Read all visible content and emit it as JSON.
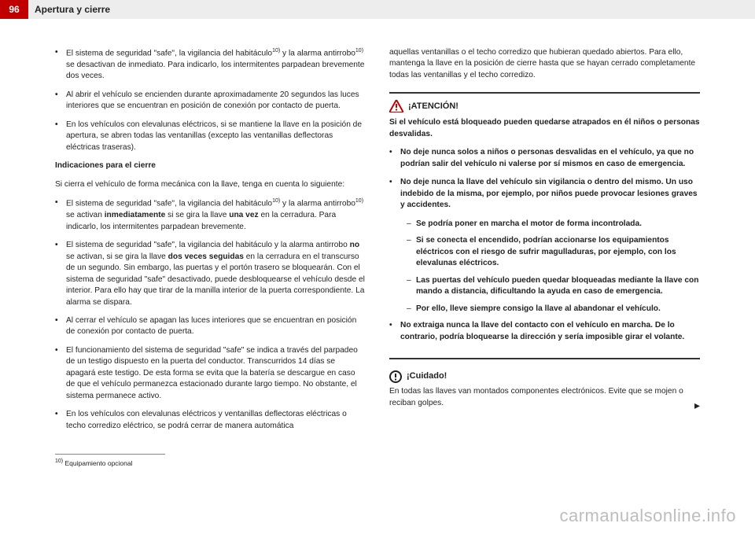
{
  "header": {
    "page_num": "96",
    "section": "Apertura y cierre"
  },
  "left": {
    "bullets_top": [
      "El sistema de seguridad \"safe\", la vigilancia del habitáculo<sup>10)</sup> y la alarma antirrobo<sup>10)</sup> se desactivan de inmediato. Para indicarlo, los intermitentes parpadean brevemente dos veces.",
      "Al abrir el vehículo se encienden durante aproximadamente 20 segundos las luces interiores que se encuentran en posición de conexión por contacto de puerta.",
      "En los vehículos con elevalunas eléctricos, si se mantiene la llave en la posición de apertura, se abren todas las ventanillas (excepto las ventanillas deflectoras eléctricas traseras)."
    ],
    "subhead": "Indicaciones para el cierre",
    "intro": "Si cierra el vehículo de forma mecánica con la llave, tenga en cuenta lo siguiente:",
    "bullets_bottom": [
      "El sistema de seguridad \"safe\", la vigilancia del habitáculo<sup>10)</sup> y la alarma antirrobo<sup>10)</sup> se activan <b>inmediatamente</b> si se gira la llave <b>una vez</b> en la cerradura. Para indicarlo, los intermitentes parpadean brevemente.",
      "El sistema de seguridad \"safe\", la vigilancia del habitáculo y la alarma antirrobo <b>no</b> se activan, si se gira la llave <b>dos veces seguidas</b> en la cerradura en el transcurso de un segundo. Sin embargo, las puertas y el portón trasero se bloquearán. Con el sistema de seguridad \"safe\" desactivado, puede desbloquearse el vehículo desde el interior. Para ello hay que tirar de la manilla interior de la puerta correspondiente. La alarma se dispara.",
      "Al cerrar el vehículo se apagan las luces interiores que se encuentran en posición de conexión por contacto de puerta.",
      "El funcionamiento del sistema de seguridad \"safe\" se indica a través del parpadeo de un testigo dispuesto en la puerta del conductor. Transcurridos 14 días se apagará este testigo. De esta forma se evita que la batería se descargue en caso de que el vehículo permanezca estacionado durante largo tiempo. No obstante, el sistema permanece activo.",
      "En los vehículos con elevalunas eléctricos y ventanillas deflectoras eléctricas o techo corredizo eléctrico, se podrá cerrar de manera automática"
    ],
    "footnote": "Equipamiento opcional",
    "footnote_mark": "10)"
  },
  "right": {
    "top_para": "aquellas ventanillas o el techo corredizo que hubieran quedado abiertos. Para ello, mantenga la llave en la posición de cierre hasta que se hayan cerrado completamente todas las ventanillas y el techo corredizo.",
    "warn_title": "¡ATENCIÓN!",
    "warn_intro": "Si el vehículo está bloqueado pueden quedarse atrapados en él niños o personas desvalidas.",
    "warn_bullets": [
      "No deje nunca solos a niños o personas desvalidas en el vehículo, ya que no podrían salir del vehículo ni valerse por sí mismos en caso de emergencia.",
      "No deje nunca la llave del vehículo sin vigilancia o dentro del mismo. Un uso indebido de la misma, por ejemplo, por niños puede provocar lesiones graves y accidentes."
    ],
    "warn_sub": [
      "Se podría poner en marcha el motor de forma incontrolada.",
      "Si se conecta el encendido, podrían accionarse los equipamientos eléctricos con el riesgo de sufrir magulladuras, por ejemplo, con los elevalunas eléctricos.",
      "Las puertas del vehículo pueden quedar bloqueadas mediante la llave con mando a distancia, dificultando la ayuda en caso de emergencia.",
      "Por ello, lleve siempre consigo la llave al abandonar el vehículo."
    ],
    "warn_bullet_last": "No extraiga nunca la llave del contacto con el vehículo en marcha. De lo contrario, podría bloquearse la dirección y sería imposible girar el volante.",
    "caution_title": "¡Cuidado!",
    "caution_text": "En todas las llaves van montados componentes electrónicos. Evite que se mojen o reciban golpes."
  },
  "watermark": "carmanualsonline.info",
  "colors": {
    "accent": "#c00000",
    "header_bg": "#ededed",
    "text": "#222222",
    "rule": "#333333",
    "watermark": "#bdbdbd"
  }
}
